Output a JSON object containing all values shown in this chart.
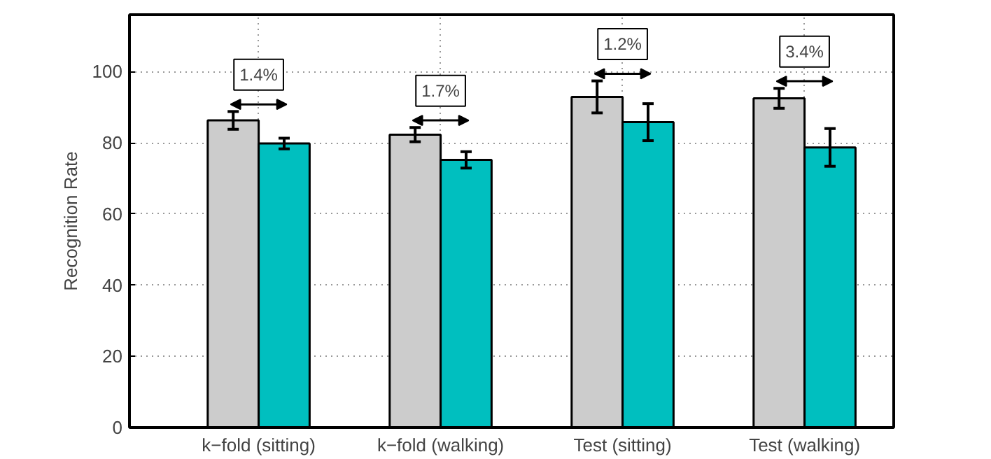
{
  "chart_data": {
    "type": "bar",
    "ylabel": "Recognition Rate",
    "categories": [
      "k−fold (sitting)",
      "k−fold (walking)",
      "Test (sitting)",
      "Test (walking)"
    ],
    "series": [
      {
        "color": "#cccccc",
        "values": [
          86.3,
          82.3,
          92.9,
          92.5
        ],
        "errors": [
          2.5,
          2,
          4.5,
          2.8
        ]
      },
      {
        "color": "#00bfbf",
        "values": [
          79.8,
          75.2,
          85.8,
          78.7
        ],
        "errors": [
          1.5,
          2.3,
          5.2,
          5.3
        ]
      }
    ],
    "ylim": [
      0,
      116
    ],
    "yticks": [
      0,
      20,
      40,
      60,
      80,
      100
    ],
    "grid": true,
    "annotations": [
      "1.4%",
      "1.7%",
      "1.2%",
      "3.4%"
    ]
  }
}
